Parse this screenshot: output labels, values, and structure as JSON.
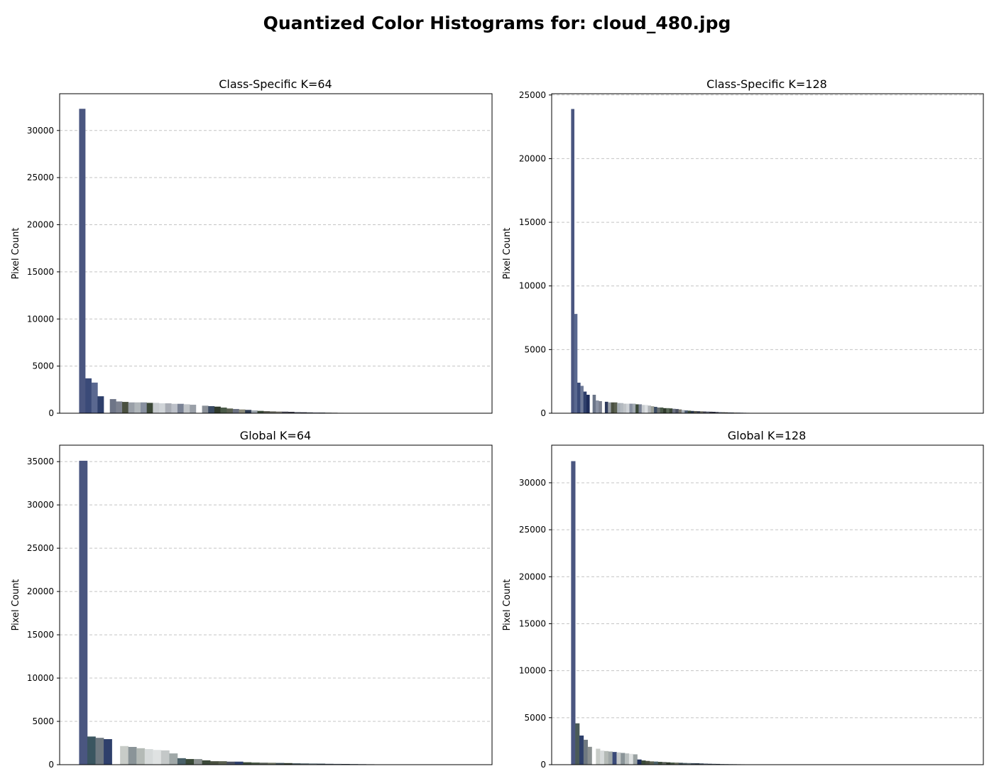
{
  "figure": {
    "title": "Quantized Color Histograms for: cloud_480.jpg"
  },
  "chart_data": [
    {
      "type": "bar",
      "title": "Class-Specific K=64",
      "xlabel": "",
      "ylabel": "Pixel Count",
      "ylim": [
        0,
        33900
      ],
      "yticks": [
        0,
        5000,
        10000,
        15000,
        20000,
        25000,
        30000
      ],
      "grid": "y dashed",
      "slots": 64,
      "values": [
        32300,
        3700,
        3250,
        1800,
        0,
        1500,
        1250,
        1200,
        1150,
        1150,
        1150,
        1100,
        1100,
        1050,
        1050,
        1000,
        1000,
        950,
        900,
        0,
        800,
        750,
        700,
        600,
        500,
        450,
        400,
        350,
        300,
        250,
        220,
        200,
        180,
        170,
        150,
        120,
        100,
        90,
        80,
        70,
        60,
        50,
        40,
        35,
        30,
        25,
        20,
        20
      ],
      "colors": [
        "#4a5680",
        "#3a4a78",
        "#5a6890",
        "#2e3f6b",
        "#ffffff",
        "#6e7587",
        "#7d8290",
        "#4a5040",
        "#9aa0a8",
        "#b0b6ba",
        "#8890a0",
        "#3c4838",
        "#c8ccd0",
        "#d0d4d8",
        "#a8acb4",
        "#bcc0c8",
        "#7a8294",
        "#c0c4c8",
        "#9aa0a8",
        "#ffffff",
        "#8a9098",
        "#3a4a62",
        "#2f3a2c",
        "#4a5a48",
        "#5a6050",
        "#6a7080",
        "#8a8a7a",
        "#2c3a50",
        "#a0a8b0",
        "#3a4a38",
        "#5a5a50",
        "#6a6a60",
        "#7a7870",
        "#4a4a58",
        "#3a3a48",
        "#5a6070",
        "#2c3040",
        "#4a5060",
        "#6a7080",
        "#3a4050",
        "#5a6060",
        "#4a4a48",
        "#6a6860",
        "#3c4a5c",
        "#2a3448",
        "#5c6474",
        "#2a3a56",
        "#3a4a66"
      ]
    },
    {
      "type": "bar",
      "title": "Class-Specific K=128",
      "xlabel": "",
      "ylabel": "Pixel Count",
      "ylim": [
        0,
        25100
      ],
      "yticks": [
        0,
        5000,
        10000,
        15000,
        20000,
        25000
      ],
      "grid": "y dashed",
      "slots": 128,
      "values": [
        23900,
        7800,
        2400,
        2150,
        1700,
        1450,
        0,
        1450,
        1000,
        950,
        0,
        900,
        850,
        850,
        850,
        800,
        800,
        750,
        750,
        750,
        750,
        700,
        700,
        650,
        650,
        600,
        550,
        500,
        450,
        450,
        400,
        400,
        380,
        350,
        330,
        300,
        250,
        220,
        200,
        180,
        170,
        160,
        150,
        140,
        130,
        120,
        110,
        100,
        90,
        80,
        70,
        60,
        55,
        50,
        45,
        40,
        35,
        30,
        28,
        25,
        22,
        20,
        18,
        16,
        15
      ],
      "colors": [
        "#4a5680",
        "#5a6890",
        "#3a4a78",
        "#6e7a98",
        "#2e3f6b",
        "#1e2d5a",
        "#ffffff",
        "#6a7488",
        "#8a92a4",
        "#7a8090",
        "#ffffff",
        "#2e3a5c",
        "#9aa0a8",
        "#4a5040",
        "#5a6050",
        "#a8b0b8",
        "#b4bac0",
        "#c0c4c8",
        "#d0d4d8",
        "#8890a0",
        "#a0a8b0",
        "#3a4838",
        "#7a8294",
        "#c8ccd0",
        "#dcdfe2",
        "#b0b4b8",
        "#9a9e96",
        "#3a4a62",
        "#6a7070",
        "#4a5a48",
        "#2f3a2c",
        "#5a6a58",
        "#3c4838",
        "#6a7080",
        "#4a5060",
        "#7a7870",
        "#a8b0b8",
        "#4a5a70",
        "#3a4a38",
        "#2c3a50",
        "#5a5a50",
        "#3a4050",
        "#6a6a60",
        "#4a4a58",
        "#5c6474",
        "#3a3a48",
        "#2c3040",
        "#4a5060",
        "#6a7080",
        "#5a6060",
        "#4a4a48",
        "#3c4a5c",
        "#2a3448",
        "#6a6860",
        "#2a3a56",
        "#3a4a66",
        "#4a5a70",
        "#5a6a80",
        "#3a4a56",
        "#4a5460",
        "#2a3444",
        "#5a6470",
        "#3a4454",
        "#4a5060",
        "#2a3040"
      ]
    },
    {
      "type": "bar",
      "title": "Global K=64",
      "xlabel": "",
      "ylabel": "Pixel Count",
      "ylim": [
        0,
        36900
      ],
      "yticks": [
        0,
        5000,
        10000,
        15000,
        20000,
        25000,
        30000,
        35000
      ],
      "grid": "y dashed",
      "slots": 48,
      "values": [
        35100,
        3250,
        3100,
        2950,
        0,
        2150,
        2050,
        1900,
        1800,
        1700,
        1650,
        1300,
        750,
        650,
        650,
        500,
        400,
        400,
        350,
        350,
        280,
        250,
        230,
        220,
        200,
        180,
        160,
        150,
        140,
        120,
        100,
        90,
        80,
        70,
        60,
        50,
        40,
        30
      ],
      "colors": [
        "#4a5680",
        "#3a5560",
        "#6e7880",
        "#2e3f6b",
        "#ffffff",
        "#c8ccc8",
        "#8a9498",
        "#b4bab6",
        "#d6dada",
        "#dfe2e2",
        "#c4c8c8",
        "#a0a8a8",
        "#4a6068",
        "#3a4a38",
        "#8a9090",
        "#3c4a3a",
        "#4a5040",
        "#5a6050",
        "#4a5060",
        "#2e3f6b",
        "#3a4a38",
        "#4a5a48",
        "#5a6058",
        "#6a7060",
        "#3a4a50",
        "#2f3a2c",
        "#4a5a60",
        "#5a6a70",
        "#6a7a80",
        "#3a4a58",
        "#4a5868",
        "#5a6878",
        "#2a3a48",
        "#3a4a5a",
        "#4a5a6a",
        "#5a6a7a",
        "#2a3a4a",
        "#3a4a5a"
      ]
    },
    {
      "type": "bar",
      "title": "Global K=128",
      "xlabel": "",
      "ylabel": "Pixel Count",
      "ylim": [
        0,
        34000
      ],
      "yticks": [
        0,
        5000,
        10000,
        15000,
        20000,
        25000,
        30000
      ],
      "grid": "y dashed",
      "slots": 95,
      "values": [
        32300,
        4400,
        3100,
        2650,
        1900,
        0,
        1700,
        1500,
        1450,
        1400,
        1350,
        1300,
        1250,
        1200,
        1150,
        1100,
        550,
        450,
        400,
        350,
        330,
        300,
        280,
        250,
        230,
        220,
        200,
        180,
        170,
        160,
        150,
        140,
        120,
        100,
        90,
        80,
        70,
        60,
        55,
        50,
        45,
        40,
        35,
        30,
        25,
        20,
        18,
        15,
        12,
        10
      ],
      "colors": [
        "#4a5680",
        "#4a5a58",
        "#2e3f6b",
        "#6e7880",
        "#8a9090",
        "#ffffff",
        "#c8ccc8",
        "#d6dada",
        "#b4bab6",
        "#a0a8a8",
        "#3a4a78",
        "#c4c8c8",
        "#8a9498",
        "#b8bebe",
        "#dfe2e2",
        "#9aa2a2",
        "#1e2d5a",
        "#3a4a38",
        "#4a5040",
        "#5a6050",
        "#4a6068",
        "#3c4a3a",
        "#5a6058",
        "#2f3a2c",
        "#4a5a48",
        "#6a7060",
        "#3a4a50",
        "#4a5a60",
        "#5a6a70",
        "#3a4a58",
        "#2a3a48",
        "#4a5868",
        "#5a6878",
        "#3a4a5a",
        "#4a5a6a",
        "#2a3a4a",
        "#5a6a7a",
        "#3a4a5a",
        "#4a5a6a",
        "#2a3a4a",
        "#3a4a5a",
        "#4a5a6a",
        "#5a6a7a",
        "#2a3a4a",
        "#3a4a5a",
        "#4a5a6a",
        "#2a3a4a",
        "#3a4a5a",
        "#4a5a6a",
        "#2a3a4a"
      ]
    }
  ]
}
